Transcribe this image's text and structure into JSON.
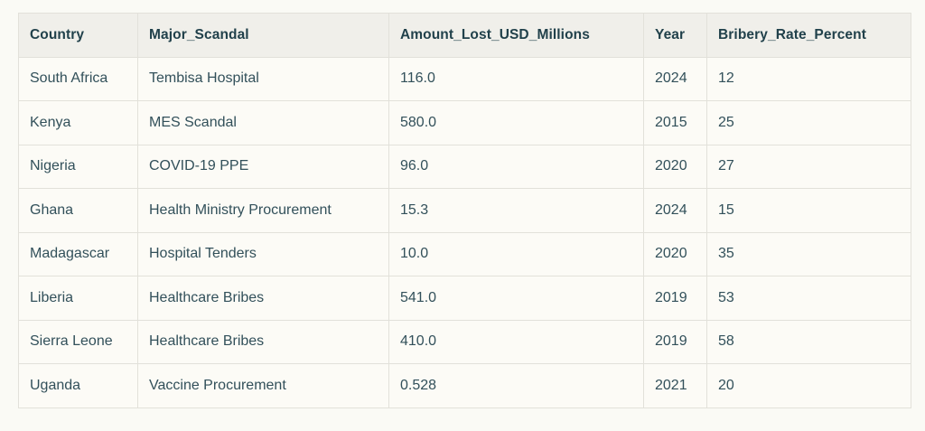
{
  "colors": {
    "page_background": "#fafaf5",
    "header_background": "#f0efea",
    "cell_background": "#fcfbf6",
    "border": "#e2e1da",
    "header_text": "#21414b",
    "cell_text": "#32505a"
  },
  "table": {
    "headers": [
      "Country",
      "Major_Scandal",
      "Amount_Lost_USD_Millions",
      "Year",
      "Bribery_Rate_Percent"
    ],
    "rows": [
      [
        "South Africa",
        "Tembisa Hospital",
        "116.0",
        "2024",
        "12"
      ],
      [
        "Kenya",
        "MES Scandal",
        "580.0",
        "2015",
        "25"
      ],
      [
        "Nigeria",
        "COVID-19 PPE",
        "96.0",
        "2020",
        "27"
      ],
      [
        "Ghana",
        "Health Ministry Procurement",
        "15.3",
        "2024",
        "15"
      ],
      [
        "Madagascar",
        "Hospital Tenders",
        "10.0",
        "2020",
        "35"
      ],
      [
        "Liberia",
        "Healthcare Bribes",
        "541.0",
        "2019",
        "53"
      ],
      [
        "Sierra Leone",
        "Healthcare Bribes",
        "410.0",
        "2019",
        "58"
      ],
      [
        "Uganda",
        "Vaccine Procurement",
        "0.528",
        "2021",
        "20"
      ]
    ]
  },
  "chart_data": {
    "type": "table",
    "columns": [
      "Country",
      "Major_Scandal",
      "Amount_Lost_USD_Millions",
      "Year",
      "Bribery_Rate_Percent"
    ],
    "rows": [
      {
        "Country": "South Africa",
        "Major_Scandal": "Tembisa Hospital",
        "Amount_Lost_USD_Millions": 116.0,
        "Year": 2024,
        "Bribery_Rate_Percent": 12
      },
      {
        "Country": "Kenya",
        "Major_Scandal": "MES Scandal",
        "Amount_Lost_USD_Millions": 580.0,
        "Year": 2015,
        "Bribery_Rate_Percent": 25
      },
      {
        "Country": "Nigeria",
        "Major_Scandal": "COVID-19 PPE",
        "Amount_Lost_USD_Millions": 96.0,
        "Year": 2020,
        "Bribery_Rate_Percent": 27
      },
      {
        "Country": "Ghana",
        "Major_Scandal": "Health Ministry Procurement",
        "Amount_Lost_USD_Millions": 15.3,
        "Year": 2024,
        "Bribery_Rate_Percent": 15
      },
      {
        "Country": "Madagascar",
        "Major_Scandal": "Hospital Tenders",
        "Amount_Lost_USD_Millions": 10.0,
        "Year": 2020,
        "Bribery_Rate_Percent": 35
      },
      {
        "Country": "Liberia",
        "Major_Scandal": "Healthcare Bribes",
        "Amount_Lost_USD_Millions": 541.0,
        "Year": 2019,
        "Bribery_Rate_Percent": 53
      },
      {
        "Country": "Sierra Leone",
        "Major_Scandal": "Healthcare Bribes",
        "Amount_Lost_USD_Millions": 410.0,
        "Year": 2019,
        "Bribery_Rate_Percent": 58
      },
      {
        "Country": "Uganda",
        "Major_Scandal": "Vaccine Procurement",
        "Amount_Lost_USD_Millions": 0.528,
        "Year": 2021,
        "Bribery_Rate_Percent": 20
      }
    ],
    "title": "",
    "legend": false,
    "grid": true
  }
}
